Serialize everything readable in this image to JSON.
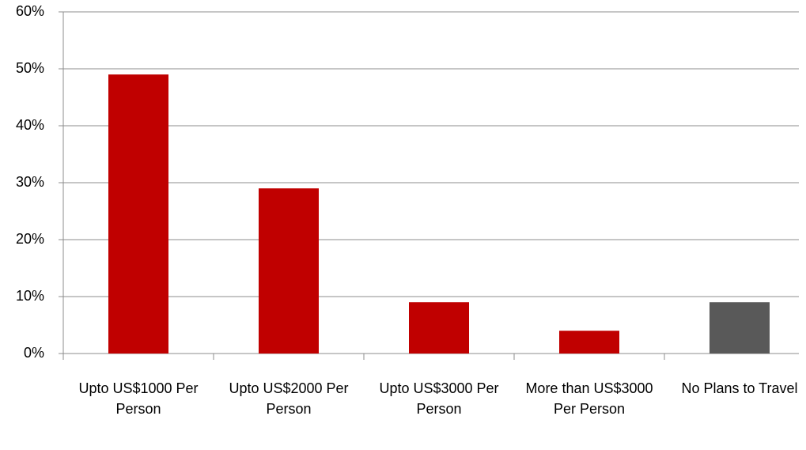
{
  "chart_data": {
    "type": "bar",
    "categories": [
      "Upto US$1000 Per Person",
      "Upto US$2000 Per Person",
      "Upto US$3000 Per Person",
      "More than US$3000 Per Person",
      "No Plans to Travel"
    ],
    "values": [
      49,
      29,
      9,
      4,
      9
    ],
    "colors": [
      "#c00000",
      "#c00000",
      "#c00000",
      "#c00000",
      "#595959"
    ],
    "ylim": [
      0,
      60
    ],
    "yticks": [
      {
        "value": 0,
        "label": "0%"
      },
      {
        "value": 10,
        "label": "10%"
      },
      {
        "value": 20,
        "label": "20%"
      },
      {
        "value": 30,
        "label": "30%"
      },
      {
        "value": 40,
        "label": "40%"
      },
      {
        "value": 50,
        "label": "50%"
      },
      {
        "value": 60,
        "label": "60%"
      }
    ],
    "grid": true
  }
}
